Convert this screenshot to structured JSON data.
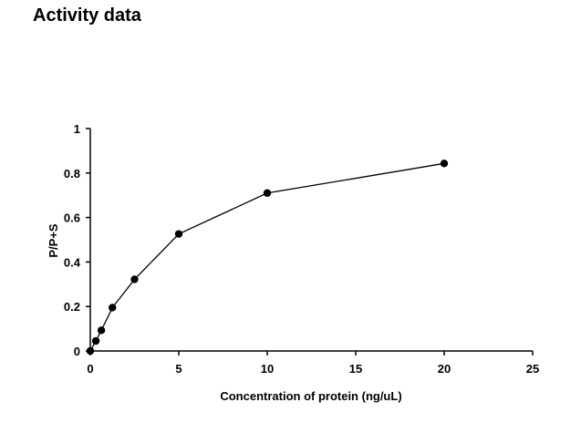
{
  "page": {
    "title": "Activity data"
  },
  "chart_data": {
    "type": "scatter",
    "xlabel": "Concentration of protein (ng/uL)",
    "ylabel": "P/P+S",
    "xlim": [
      0,
      25
    ],
    "ylim": [
      0,
      1
    ],
    "x_ticks": [
      "0",
      "5",
      "10",
      "15",
      "20",
      "25"
    ],
    "y_ticks": [
      "0",
      "0.2",
      "0.4",
      "0.6",
      "0.8",
      "1"
    ],
    "grid": false,
    "legend": "none",
    "series": [
      {
        "line": true,
        "marker": "circle",
        "color": "#000000",
        "points": [
          {
            "x": 0,
            "y": 0
          },
          {
            "x": 0.3125,
            "y": 0.045
          },
          {
            "x": 0.625,
            "y": 0.093
          },
          {
            "x": 1.25,
            "y": 0.195
          },
          {
            "x": 2.5,
            "y": 0.322
          },
          {
            "x": 5,
            "y": 0.526
          },
          {
            "x": 10,
            "y": 0.71
          },
          {
            "x": 20,
            "y": 0.843
          }
        ]
      }
    ]
  }
}
